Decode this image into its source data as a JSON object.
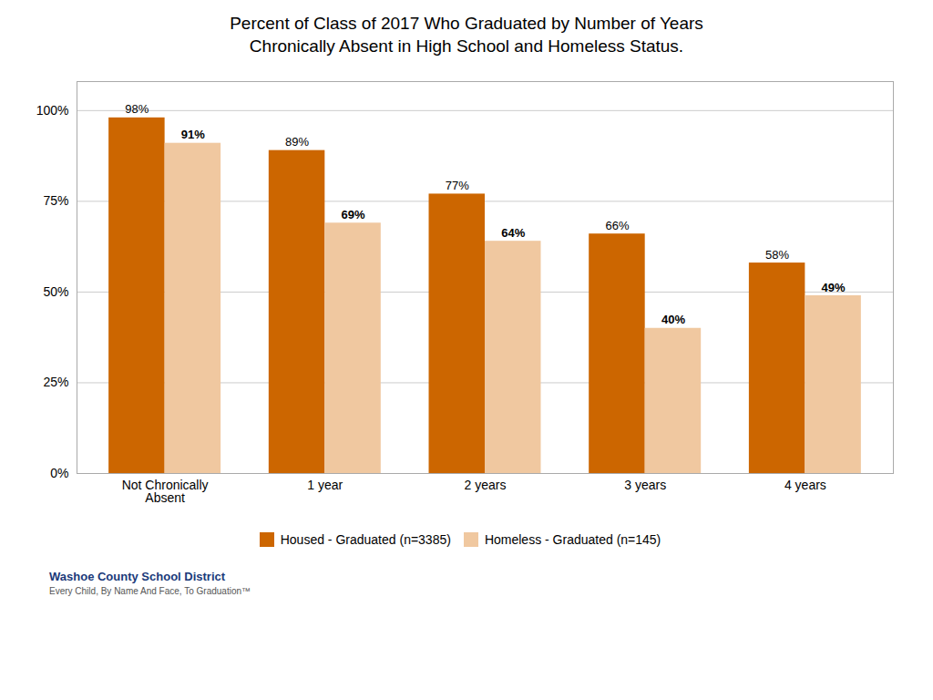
{
  "chart_data": {
    "type": "bar",
    "title": "Percent of Class of 2017 Who Graduated by Number of Years\nChronically Absent in High School and Homeless Status.",
    "categories": [
      "Not Chronically\nAbsent",
      "1 year",
      "2 years",
      "3 years",
      "4 years"
    ],
    "series": [
      {
        "name": "Housed - Graduated (n=3385)",
        "color": "#CC6600",
        "values": [
          0.98,
          0.89,
          0.77,
          0.66,
          0.58
        ],
        "value_labels": [
          "98%",
          "89%",
          "77%",
          "66%",
          "58%"
        ]
      },
      {
        "name": "Homeless - Graduated (n=145)",
        "color": "#F0C8A0",
        "values": [
          0.91,
          0.69,
          0.64,
          0.4,
          0.49
        ],
        "value_labels": [
          "91%",
          "69%",
          "64%",
          "40%",
          "49%"
        ]
      }
    ],
    "ylim": [
      0,
      1.08
    ],
    "yticks": [
      {
        "value": 0.0,
        "label": "0%"
      },
      {
        "value": 0.25,
        "label": "25%"
      },
      {
        "value": 0.5,
        "label": "50%"
      },
      {
        "value": 0.75,
        "label": "75%"
      },
      {
        "value": 1.0,
        "label": "100%"
      }
    ],
    "grid": true,
    "data_labels": true,
    "legend": "bottom",
    "annotations": [
      "Washoe County School District",
      "Every Child, By Name And Face, To Graduation™"
    ]
  }
}
